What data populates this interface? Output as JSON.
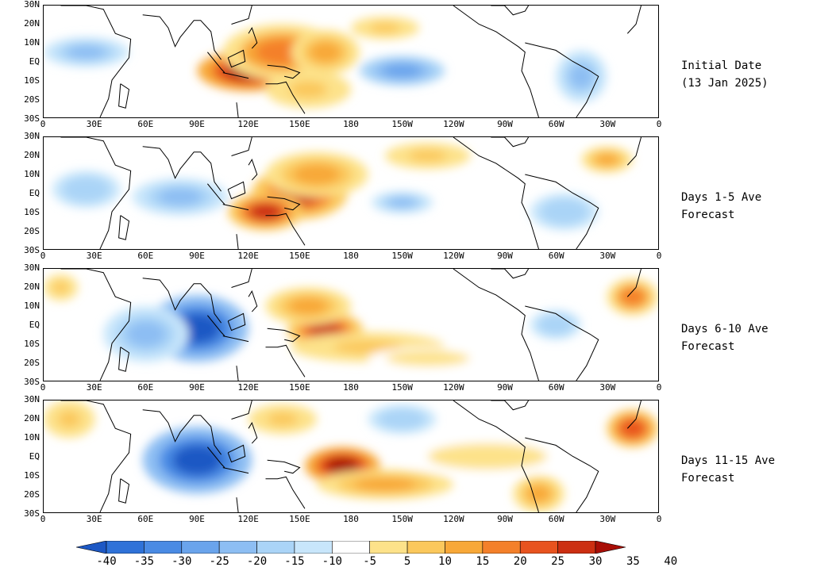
{
  "panels": [
    {
      "id": "initial",
      "caption_line1": "Initial Date",
      "caption_line2": "(13 Jan 2025)"
    },
    {
      "id": "days1-5",
      "caption_line1": "Days 1-5 Ave",
      "caption_line2": "Forecast"
    },
    {
      "id": "days6-10",
      "caption_line1": "Days 6-10 Ave",
      "caption_line2": "Forecast"
    },
    {
      "id": "days11-15",
      "caption_line1": "Days 11-15 Ave",
      "caption_line2": "Forecast"
    }
  ],
  "lat_labels": [
    "30N",
    "20N",
    "10N",
    "EQ",
    "10S",
    "20S",
    "30S"
  ],
  "lon_labels": [
    "0",
    "30E",
    "60E",
    "90E",
    "120E",
    "150E",
    "180",
    "150W",
    "120W",
    "90W",
    "60W",
    "30W",
    "0"
  ],
  "colorbar": {
    "labels": [
      "-40",
      "-35",
      "-30",
      "-25",
      "-20",
      "-15",
      "-10",
      "-5",
      "5",
      "10",
      "15",
      "20",
      "25",
      "30",
      "35",
      "40"
    ],
    "colors": [
      "#1d58c4",
      "#2f72d8",
      "#4a8be4",
      "#6aa4ec",
      "#8dbef3",
      "#aad4f7",
      "#c8e6fb",
      "#ffffff",
      "#fde28a",
      "#fbc85c",
      "#f8a838",
      "#f4802a",
      "#e8531f",
      "#cc2f12",
      "#a80e06"
    ]
  },
  "anomalies": [
    [
      {
        "lon": 120,
        "lat": -5,
        "rx": 30,
        "ry": 11,
        "v": 35
      },
      {
        "lon": 140,
        "lat": 5,
        "rx": 35,
        "ry": 15,
        "v": 20
      },
      {
        "lon": 165,
        "lat": 5,
        "rx": 20,
        "ry": 12,
        "v": 15
      },
      {
        "lon": 155,
        "lat": -15,
        "rx": 25,
        "ry": 10,
        "v": 10
      },
      {
        "lon": 210,
        "lat": -5,
        "rx": 25,
        "ry": 8,
        "v": -20
      },
      {
        "lon": 200,
        "lat": 18,
        "rx": 20,
        "ry": 6,
        "v": 10
      },
      {
        "lon": 315,
        "lat": -8,
        "rx": 15,
        "ry": 14,
        "v": -15
      },
      {
        "lon": 25,
        "lat": 5,
        "rx": 25,
        "ry": 8,
        "v": -15
      }
    ],
    [
      {
        "lon": 150,
        "lat": 0,
        "rx": 28,
        "ry": 14,
        "v": 30
      },
      {
        "lon": 130,
        "lat": -10,
        "rx": 22,
        "ry": 10,
        "v": 30
      },
      {
        "lon": 160,
        "lat": 10,
        "rx": 30,
        "ry": 12,
        "v": 15
      },
      {
        "lon": 80,
        "lat": -2,
        "rx": 28,
        "ry": 10,
        "v": -15
      },
      {
        "lon": 25,
        "lat": 2,
        "rx": 20,
        "ry": 10,
        "v": -10
      },
      {
        "lon": 210,
        "lat": -5,
        "rx": 18,
        "ry": 6,
        "v": -15
      },
      {
        "lon": 225,
        "lat": 20,
        "rx": 25,
        "ry": 7,
        "v": 10
      },
      {
        "lon": 330,
        "lat": 18,
        "rx": 15,
        "ry": 7,
        "v": 15
      },
      {
        "lon": 305,
        "lat": -10,
        "rx": 20,
        "ry": 10,
        "v": -10
      }
    ],
    [
      {
        "lon": 90,
        "lat": -2,
        "rx": 30,
        "ry": 18,
        "v": -35
      },
      {
        "lon": 60,
        "lat": -5,
        "rx": 25,
        "ry": 15,
        "v": -15
      },
      {
        "lon": 165,
        "lat": -3,
        "rx": 22,
        "ry": 10,
        "v": 30
      },
      {
        "lon": 155,
        "lat": 10,
        "rx": 25,
        "ry": 10,
        "v": 15
      },
      {
        "lon": 190,
        "lat": -12,
        "rx": 45,
        "ry": 8,
        "v": 10
      },
      {
        "lon": 345,
        "lat": 15,
        "rx": 15,
        "ry": 10,
        "v": 20
      },
      {
        "lon": 10,
        "lat": 20,
        "rx": 10,
        "ry": 7,
        "v": 10
      },
      {
        "lon": 300,
        "lat": 0,
        "rx": 15,
        "ry": 8,
        "v": -10
      },
      {
        "lon": 225,
        "lat": -18,
        "rx": 35,
        "ry": 6,
        "v": 5
      }
    ],
    [
      {
        "lon": 90,
        "lat": -2,
        "rx": 32,
        "ry": 18,
        "v": -35
      },
      {
        "lon": 175,
        "lat": -5,
        "rx": 22,
        "ry": 10,
        "v": 35
      },
      {
        "lon": 200,
        "lat": -15,
        "rx": 40,
        "ry": 8,
        "v": 15
      },
      {
        "lon": 140,
        "lat": 20,
        "rx": 20,
        "ry": 8,
        "v": 10
      },
      {
        "lon": 345,
        "lat": 15,
        "rx": 15,
        "ry": 10,
        "v": 25
      },
      {
        "lon": 290,
        "lat": -20,
        "rx": 15,
        "ry": 10,
        "v": 15
      },
      {
        "lon": 210,
        "lat": 20,
        "rx": 20,
        "ry": 8,
        "v": -10
      },
      {
        "lon": 15,
        "lat": 20,
        "rx": 15,
        "ry": 10,
        "v": 10
      },
      {
        "lon": 260,
        "lat": 0,
        "rx": 50,
        "ry": 10,
        "v": 5
      }
    ]
  ]
}
